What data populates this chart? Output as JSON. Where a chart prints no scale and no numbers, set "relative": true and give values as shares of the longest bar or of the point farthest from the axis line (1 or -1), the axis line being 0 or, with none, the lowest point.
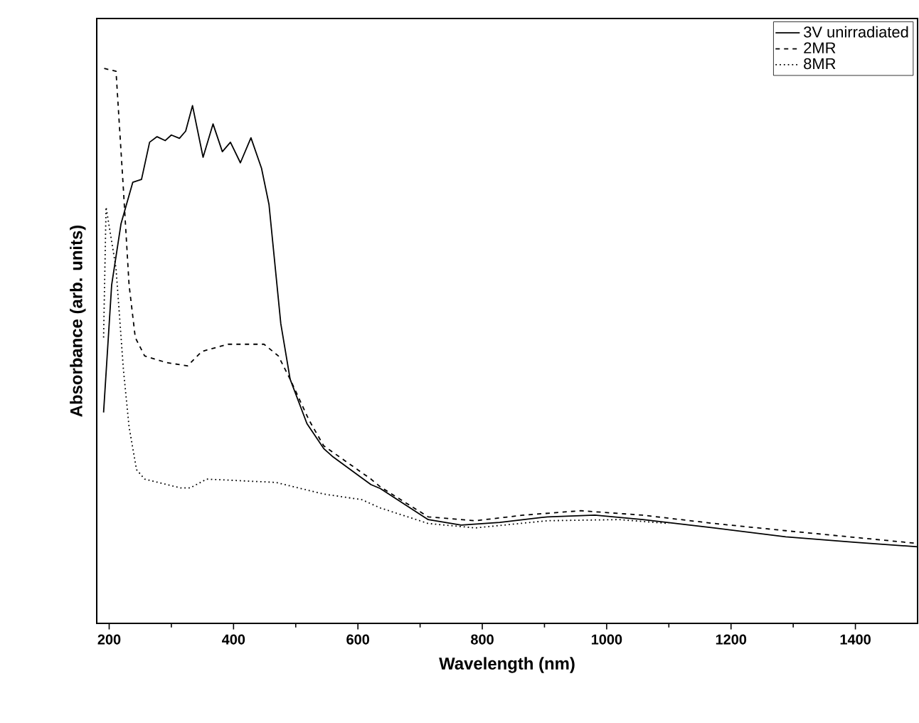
{
  "chart_data": {
    "type": "line",
    "xlabel": "Wavelength (nm)",
    "ylabel": "Absorbance (arb. units)",
    "relative": true,
    "xlim": [
      180,
      1500
    ],
    "xticks": [
      200,
      400,
      600,
      800,
      1000,
      1200,
      1400
    ],
    "legend": "top right",
    "grid": false,
    "series": [
      {
        "name": "3V unirradiated",
        "color": "#000000",
        "line_style": "solid",
        "x": [
          191,
          204,
          219,
          238,
          252,
          265,
          277,
          290,
          300,
          313,
          323,
          334,
          351,
          367,
          382,
          395,
          411,
          428,
          445,
          457,
          476,
          491,
          518,
          545,
          560,
          621,
          636,
          713,
          766,
          828,
          905,
          981,
          1058,
          1173,
          1288,
          1400,
          1500
        ],
        "values": [
          0.38,
          0.61,
          0.72,
          0.795,
          0.8,
          0.867,
          0.877,
          0.87,
          0.88,
          0.874,
          0.887,
          0.933,
          0.84,
          0.9,
          0.85,
          0.867,
          0.83,
          0.875,
          0.82,
          0.755,
          0.54,
          0.44,
          0.36,
          0.315,
          0.3,
          0.25,
          0.243,
          0.187,
          0.177,
          0.182,
          0.192,
          0.195,
          0.187,
          0.172,
          0.156,
          0.146,
          0.138
        ]
      },
      {
        "name": "2MR",
        "color": "#000000",
        "line_style": "dashed",
        "x": [
          192,
          211,
          223,
          232,
          242,
          257,
          292,
          326,
          349,
          391,
          449,
          472,
          491,
          521,
          545,
          621,
          636,
          713,
          789,
          866,
          958,
          1058,
          1173,
          1288,
          1500
        ],
        "values": [
          1.0,
          0.995,
          0.78,
          0.61,
          0.515,
          0.482,
          0.47,
          0.464,
          0.49,
          0.503,
          0.503,
          0.482,
          0.44,
          0.367,
          0.32,
          0.26,
          0.246,
          0.192,
          0.185,
          0.195,
          0.203,
          0.195,
          0.18,
          0.167,
          0.144
        ]
      },
      {
        "name": "8MR",
        "color": "#000000",
        "line_style": "dotted",
        "x": [
          191,
          195,
          211,
          223,
          232,
          244,
          257,
          315,
          330,
          357,
          468,
          545,
          606,
          636,
          713,
          789,
          905,
          1020,
          1100
        ],
        "values": [
          0.515,
          0.75,
          0.64,
          0.456,
          0.354,
          0.277,
          0.26,
          0.244,
          0.244,
          0.26,
          0.254,
          0.233,
          0.223,
          0.208,
          0.18,
          0.172,
          0.185,
          0.187,
          0.18
        ]
      }
    ]
  }
}
